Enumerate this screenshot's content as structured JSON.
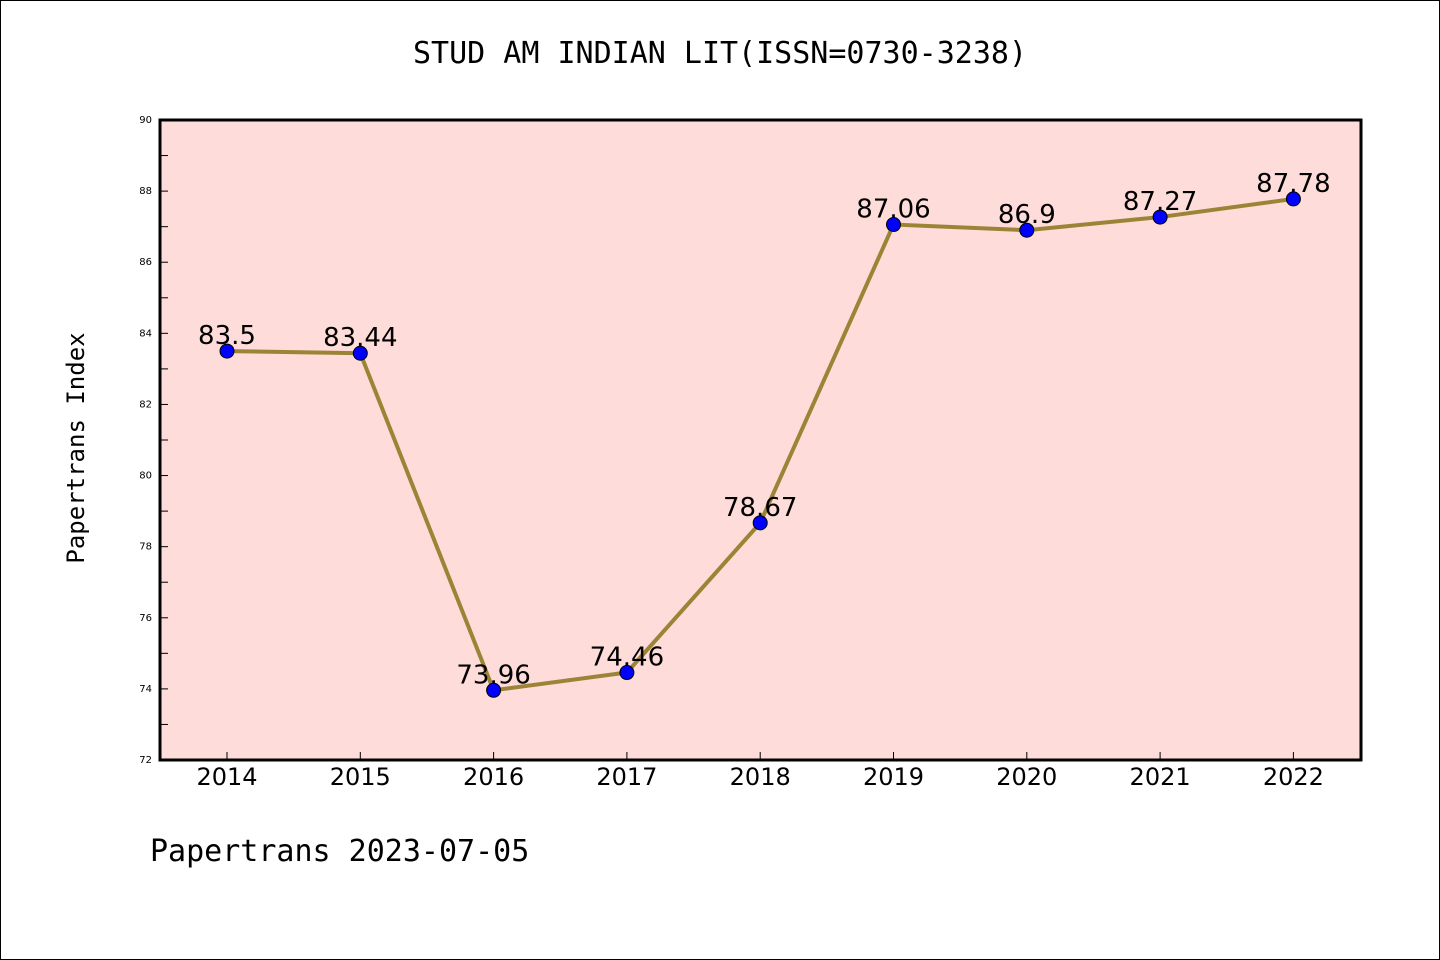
{
  "title": "STUD AM INDIAN LIT(ISSN=0730-3238)",
  "footer": "Papertrans 2023-07-05",
  "colors": {
    "plot_background": "#fddcd9",
    "line": "#9b8436",
    "marker": "#0000ff"
  },
  "chart_data": {
    "type": "line",
    "title": "STUD AM INDIAN LIT(ISSN=0730-3238)",
    "xlabel": "",
    "ylabel": "Papertrans Index",
    "categories": [
      "2014",
      "2015",
      "2016",
      "2017",
      "2018",
      "2019",
      "2020",
      "2021",
      "2022"
    ],
    "series": [
      {
        "values": [
          83.5,
          83.44,
          73.96,
          74.46,
          78.67,
          87.06,
          86.9,
          87.27,
          87.78
        ],
        "labels": [
          "83.5",
          "83.44",
          "73.96",
          "74.46",
          "78.67",
          "87.06",
          "86.9",
          "87.27",
          "87.78"
        ]
      }
    ],
    "ylim": [
      72,
      90
    ],
    "yticks": [
      "72",
      "74",
      "76",
      "78",
      "80",
      "82",
      "84",
      "86",
      "88",
      "90"
    ],
    "grid": false,
    "legend": "none"
  }
}
